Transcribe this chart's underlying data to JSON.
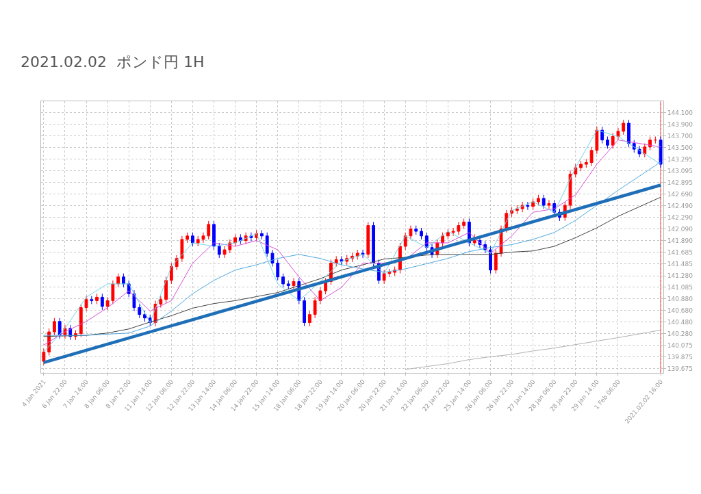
{
  "chart_data": {
    "type": "candlestick",
    "title": "2021.02.02  ポンド円 1H",
    "categories": [
      "4 Jan 2021",
      null,
      null,
      null,
      "6 Jan 22:00",
      null,
      null,
      null,
      "7 Jan 14:00",
      null,
      null,
      null,
      "8 Jan 06:00",
      null,
      null,
      null,
      "8 Jan 22:00",
      null,
      null,
      null,
      "11 Jan 14:00",
      null,
      null,
      null,
      "12 Jan 06:00",
      null,
      null,
      null,
      "12 Jan 22:00",
      null,
      null,
      null,
      "13 Jan 14:00",
      null,
      null,
      null,
      "14 Jan 06:00",
      null,
      null,
      null,
      "14 Jan 22:00",
      null,
      null,
      null,
      "15 Jan 14:00",
      null,
      null,
      null,
      "18 Jan 06:00",
      null,
      null,
      null,
      "18 Jan 22:00",
      null,
      null,
      null,
      "19 Jan 14:00",
      null,
      null,
      null,
      "20 Jan 06:00",
      null,
      null,
      null,
      "20 Jan 22:00",
      null,
      null,
      null,
      "21 Jan 14:00",
      null,
      null,
      null,
      "22 Jan 06:00",
      null,
      null,
      null,
      "22 Jan 22:00",
      null,
      null,
      null,
      "25 Jan 14:00",
      null,
      null,
      null,
      "26 Jan 06:00",
      null,
      null,
      null,
      "26 Jan 22:00",
      null,
      null,
      null,
      "27 Jan 14:00",
      null,
      null,
      null,
      "28 Jan 06:00",
      null,
      null,
      null,
      "28 Jan 22:00",
      null,
      null,
      null,
      "29 Jan 14:00",
      null,
      null,
      null,
      "1 Feb 06:00",
      null,
      null,
      null,
      null,
      null,
      null,
      null,
      "2021.02.02 16:00"
    ],
    "ohlc": [
      [
        139.8,
        140.02,
        139.74,
        139.96
      ],
      [
        139.96,
        140.37,
        139.9,
        140.31
      ],
      [
        140.31,
        140.55,
        140.25,
        140.49
      ],
      [
        140.49,
        140.55,
        140.19,
        140.25
      ],
      [
        140.25,
        140.43,
        140.19,
        140.37
      ],
      [
        140.37,
        140.43,
        140.17,
        140.23
      ],
      [
        140.23,
        140.34,
        140.17,
        140.28
      ],
      [
        140.28,
        140.79,
        140.22,
        140.73
      ],
      [
        140.73,
        140.93,
        140.67,
        140.87
      ],
      [
        140.87,
        140.93,
        140.79,
        140.85
      ],
      [
        140.85,
        140.97,
        140.79,
        140.91
      ],
      [
        140.91,
        140.97,
        140.69,
        140.75
      ],
      [
        140.75,
        140.91,
        140.69,
        140.85
      ],
      [
        140.85,
        141.2,
        140.79,
        141.14
      ],
      [
        141.14,
        141.32,
        141.08,
        141.26
      ],
      [
        141.26,
        141.32,
        141.08,
        141.14
      ],
      [
        141.14,
        141.2,
        140.91,
        140.97
      ],
      [
        140.97,
        141.03,
        140.67,
        140.73
      ],
      [
        140.73,
        140.79,
        140.55,
        140.61
      ],
      [
        140.61,
        140.67,
        140.49,
        140.55
      ],
      [
        140.55,
        140.61,
        140.41,
        140.47
      ],
      [
        140.47,
        140.85,
        140.41,
        140.79
      ],
      [
        140.79,
        140.93,
        140.73,
        140.87
      ],
      [
        140.87,
        141.26,
        140.81,
        141.2
      ],
      [
        141.2,
        141.5,
        141.14,
        141.44
      ],
      [
        141.44,
        141.64,
        141.38,
        141.58
      ],
      [
        141.58,
        141.97,
        141.52,
        141.91
      ],
      [
        141.91,
        142.03,
        141.85,
        141.97
      ],
      [
        141.97,
        142.03,
        141.79,
        141.85
      ],
      [
        141.85,
        141.97,
        141.79,
        141.91
      ],
      [
        141.91,
        142.03,
        141.85,
        141.97
      ],
      [
        141.97,
        142.23,
        141.91,
        142.17
      ],
      [
        142.17,
        142.23,
        141.73,
        141.79
      ],
      [
        141.79,
        141.85,
        141.59,
        141.65
      ],
      [
        141.65,
        141.79,
        141.59,
        141.73
      ],
      [
        141.73,
        141.91,
        141.67,
        141.85
      ],
      [
        141.85,
        142.0,
        141.79,
        141.94
      ],
      [
        141.94,
        142.0,
        141.83,
        141.89
      ],
      [
        141.89,
        142.03,
        141.83,
        141.97
      ],
      [
        141.97,
        142.03,
        141.88,
        141.94
      ],
      [
        141.94,
        142.07,
        141.88,
        142.01
      ],
      [
        142.01,
        142.07,
        141.91,
        141.97
      ],
      [
        141.97,
        142.03,
        141.61,
        141.67
      ],
      [
        141.67,
        141.73,
        141.44,
        141.5
      ],
      [
        141.5,
        141.56,
        141.2,
        141.26
      ],
      [
        141.26,
        141.32,
        141.08,
        141.14
      ],
      [
        141.14,
        141.2,
        141.05,
        141.11
      ],
      [
        141.11,
        141.24,
        141.05,
        141.18
      ],
      [
        141.18,
        141.24,
        140.79,
        140.85
      ],
      [
        140.85,
        140.91,
        140.41,
        140.47
      ],
      [
        140.47,
        140.67,
        140.41,
        140.61
      ],
      [
        140.61,
        140.91,
        140.55,
        140.85
      ],
      [
        140.85,
        141.08,
        140.79,
        141.02
      ],
      [
        141.02,
        141.24,
        140.96,
        141.18
      ],
      [
        141.18,
        141.56,
        141.12,
        141.5
      ],
      [
        141.5,
        141.62,
        141.44,
        141.56
      ],
      [
        141.56,
        141.62,
        141.47,
        141.53
      ],
      [
        141.53,
        141.64,
        141.47,
        141.58
      ],
      [
        141.58,
        141.68,
        141.52,
        141.62
      ],
      [
        141.62,
        141.73,
        141.56,
        141.67
      ],
      [
        141.67,
        141.73,
        141.59,
        141.65
      ],
      [
        141.65,
        142.21,
        141.59,
        142.15
      ],
      [
        142.15,
        142.21,
        141.44,
        141.5
      ],
      [
        141.5,
        141.56,
        141.14,
        141.2
      ],
      [
        141.2,
        141.38,
        141.14,
        141.32
      ],
      [
        141.32,
        141.4,
        141.26,
        141.34
      ],
      [
        141.34,
        141.44,
        141.28,
        141.38
      ],
      [
        141.38,
        141.85,
        141.32,
        141.79
      ],
      [
        141.79,
        142.03,
        141.73,
        141.97
      ],
      [
        141.97,
        142.15,
        141.91,
        142.09
      ],
      [
        142.09,
        142.15,
        141.99,
        142.05
      ],
      [
        142.05,
        142.11,
        141.91,
        141.97
      ],
      [
        141.97,
        142.03,
        141.71,
        141.77
      ],
      [
        141.77,
        141.83,
        141.59,
        141.65
      ],
      [
        141.65,
        141.91,
        141.59,
        141.85
      ],
      [
        141.85,
        142.03,
        141.79,
        141.97
      ],
      [
        141.97,
        142.09,
        141.91,
        142.03
      ],
      [
        142.03,
        142.11,
        141.97,
        142.05
      ],
      [
        142.05,
        142.21,
        141.99,
        142.15
      ],
      [
        142.15,
        142.27,
        142.09,
        142.21
      ],
      [
        142.21,
        142.27,
        141.79,
        141.85
      ],
      [
        141.85,
        142.0,
        141.79,
        141.89
      ],
      [
        141.89,
        141.95,
        141.76,
        141.82
      ],
      [
        141.82,
        141.88,
        141.67,
        141.73
      ],
      [
        141.73,
        141.79,
        141.32,
        141.38
      ],
      [
        141.38,
        141.73,
        141.32,
        141.67
      ],
      [
        141.67,
        142.15,
        141.61,
        142.09
      ],
      [
        142.09,
        142.42,
        142.03,
        142.36
      ],
      [
        142.36,
        142.47,
        142.3,
        142.41
      ],
      [
        142.41,
        142.5,
        142.35,
        142.44
      ],
      [
        142.44,
        142.56,
        142.38,
        142.5
      ],
      [
        142.5,
        142.56,
        142.42,
        142.48
      ],
      [
        142.48,
        142.62,
        142.42,
        142.56
      ],
      [
        142.56,
        142.68,
        142.5,
        142.62
      ],
      [
        142.62,
        142.68,
        142.44,
        142.5
      ],
      [
        142.5,
        142.59,
        142.44,
        142.53
      ],
      [
        142.53,
        142.59,
        142.32,
        142.38
      ],
      [
        142.38,
        142.44,
        142.23,
        142.29
      ],
      [
        142.29,
        142.56,
        142.23,
        142.5
      ],
      [
        142.5,
        143.1,
        142.44,
        143.04
      ],
      [
        143.04,
        143.21,
        142.98,
        143.15
      ],
      [
        143.15,
        143.27,
        143.09,
        143.21
      ],
      [
        143.21,
        143.3,
        143.15,
        143.24
      ],
      [
        143.24,
        143.51,
        143.18,
        143.45
      ],
      [
        143.45,
        143.86,
        143.39,
        143.8
      ],
      [
        143.8,
        143.86,
        143.57,
        143.63
      ],
      [
        143.63,
        143.69,
        143.48,
        143.54
      ],
      [
        143.54,
        143.75,
        143.48,
        143.69
      ],
      [
        143.69,
        143.84,
        143.63,
        143.78
      ],
      [
        143.78,
        143.98,
        143.72,
        143.92
      ],
      [
        143.92,
        143.98,
        143.51,
        143.57
      ],
      [
        143.57,
        143.63,
        143.41,
        143.47
      ],
      [
        143.47,
        143.53,
        143.33,
        143.39
      ],
      [
        143.39,
        143.57,
        143.33,
        143.51
      ],
      [
        143.51,
        143.69,
        143.45,
        143.63
      ],
      [
        143.63,
        143.69,
        143.57,
        143.63
      ],
      [
        143.63,
        143.69,
        143.15,
        143.21
      ]
    ],
    "series": [
      {
        "type": "line",
        "color": "#b0b0b0",
        "x": [
          "21 Jan 14:00",
          "22 Jan 06:00",
          "22 Jan 22:00",
          "25 Jan 14:00",
          "26 Jan 06:00",
          "26 Jan 22:00",
          "27 Jan 14:00",
          "28 Jan 06:00",
          "28 Jan 22:00",
          "29 Jan 14:00",
          "1 Feb 06:00",
          "2021.02.02 16:00"
        ],
        "values": [
          139.66,
          139.71,
          139.76,
          139.83,
          139.88,
          139.92,
          139.98,
          140.03,
          140.09,
          140.15,
          140.21,
          140.34
        ]
      },
      {
        "type": "line",
        "color": "#404040",
        "x": [
          "4 Jan 2021",
          "6 Jan 22:00",
          "7 Jan 14:00",
          "8 Jan 06:00",
          "8 Jan 22:00",
          "11 Jan 14:00",
          "12 Jan 06:00",
          "12 Jan 22:00",
          "13 Jan 14:00",
          "14 Jan 06:00",
          "14 Jan 22:00",
          "15 Jan 14:00",
          "18 Jan 06:00",
          "18 Jan 22:00",
          "19 Jan 14:00",
          "20 Jan 06:00",
          "20 Jan 22:00",
          "21 Jan 14:00",
          "22 Jan 06:00",
          "22 Jan 22:00",
          "25 Jan 14:00",
          "26 Jan 06:00",
          "26 Jan 22:00",
          "27 Jan 14:00",
          "28 Jan 06:00",
          "28 Jan 22:00",
          "29 Jan 14:00",
          "1 Feb 06:00",
          "2021.02.02 16:00"
        ],
        "values": [
          140.23,
          140.24,
          140.25,
          140.29,
          140.36,
          140.48,
          140.59,
          140.72,
          140.8,
          140.85,
          140.92,
          140.99,
          141.11,
          141.23,
          141.38,
          141.47,
          141.57,
          141.6,
          141.64,
          141.65,
          141.65,
          141.65,
          141.69,
          141.71,
          141.79,
          141.94,
          142.11,
          142.31,
          142.64
        ]
      },
      {
        "type": "line",
        "color": "#4fa8e0",
        "x": [
          "4 Jan 2021",
          "6 Jan 22:00",
          "7 Jan 14:00",
          "8 Jan 06:00",
          "8 Jan 22:00",
          "11 Jan 14:00",
          "12 Jan 06:00",
          "12 Jan 22:00",
          "13 Jan 14:00",
          "14 Jan 06:00",
          "14 Jan 22:00",
          "15 Jan 14:00",
          "18 Jan 06:00",
          "18 Jan 22:00",
          "19 Jan 14:00",
          "20 Jan 06:00",
          "20 Jan 22:00",
          "21 Jan 14:00",
          "22 Jan 06:00",
          "22 Jan 22:00",
          "25 Jan 14:00",
          "26 Jan 06:00",
          "26 Jan 22:00",
          "27 Jan 14:00",
          "28 Jan 06:00",
          "28 Jan 22:00",
          "29 Jan 14:00",
          "1 Feb 06:00",
          "2021.02.02 16:00"
        ],
        "values": [
          140.25,
          140.25,
          140.25,
          140.27,
          140.29,
          140.41,
          140.67,
          140.97,
          141.2,
          141.38,
          141.47,
          141.58,
          141.65,
          141.58,
          141.47,
          141.4,
          141.34,
          141.4,
          141.49,
          141.58,
          141.7,
          141.77,
          141.82,
          141.91,
          142.03,
          142.24,
          142.5,
          142.76,
          143.25
        ]
      },
      {
        "type": "line",
        "color": "#d94fd9",
        "x": [
          "4 Jan 2021",
          "6 Jan 22:00",
          "7 Jan 14:00",
          "8 Jan 06:00",
          "8 Jan 22:00",
          "11 Jan 14:00",
          "12 Jan 06:00",
          "12 Jan 22:00",
          "13 Jan 14:00",
          "14 Jan 06:00",
          "14 Jan 22:00",
          "15 Jan 14:00",
          "18 Jan 06:00",
          "18 Jan 22:00",
          "19 Jan 14:00",
          "20 Jan 06:00",
          "20 Jan 22:00",
          "21 Jan 14:00",
          "22 Jan 06:00",
          "22 Jan 22:00",
          "25 Jan 14:00",
          "26 Jan 06:00",
          "26 Jan 22:00",
          "27 Jan 14:00",
          "28 Jan 06:00",
          "28 Jan 22:00",
          "29 Jan 14:00",
          "1 Feb 06:00",
          "2021.02.02 16:00"
        ],
        "values": [
          140.08,
          140.31,
          140.49,
          140.73,
          141.02,
          140.67,
          140.85,
          141.5,
          141.85,
          141.79,
          141.89,
          141.73,
          141.26,
          140.85,
          141.08,
          141.5,
          141.5,
          141.56,
          141.85,
          141.85,
          142.03,
          141.67,
          141.97,
          142.38,
          142.44,
          142.68,
          143.21,
          143.63,
          143.51
        ]
      },
      {
        "type": "line",
        "color": "#6fd6e8",
        "x": [
          "4 Jan 2021",
          "6 Jan 22:00",
          "7 Jan 14:00",
          "8 Jan 06:00",
          "8 Jan 22:00",
          "11 Jan 14:00",
          "12 Jan 06:00",
          "12 Jan 22:00",
          "13 Jan 14:00",
          "14 Jan 06:00",
          "14 Jan 22:00",
          "15 Jan 14:00",
          "18 Jan 06:00",
          "18 Jan 22:00",
          "19 Jan 14:00",
          "20 Jan 06:00",
          "20 Jan 22:00",
          "21 Jan 14:00",
          "22 Jan 06:00",
          "22 Jan 22:00",
          "25 Jan 14:00",
          "26 Jan 06:00",
          "26 Jan 22:00",
          "27 Jan 14:00",
          "28 Jan 06:00",
          "28 Jan 22:00",
          "29 Jan 14:00",
          "1 Feb 06:00",
          "2021.02.02 16:00"
        ],
        "values": [
          139.96,
          140.37,
          140.91,
          141.14,
          141.14,
          140.47,
          141.44,
          141.85,
          141.79,
          141.85,
          142.01,
          141.14,
          140.85,
          141.18,
          141.53,
          141.65,
          141.32,
          141.97,
          141.77,
          142.05,
          141.85,
          141.67,
          142.41,
          142.56,
          142.38,
          143.15,
          143.8,
          143.69,
          143.21
        ]
      },
      {
        "type": "line",
        "color": "#1f6fb8",
        "x": [
          "4 Jan 2021",
          "2021.02.02 16:00"
        ],
        "values": [
          139.78,
          142.85
        ]
      }
    ],
    "ylim": [
      139.6,
      144.3
    ],
    "yticks": [
      {
        "value": 144.1,
        "label": "144.100"
      },
      {
        "value": 143.9,
        "label": "143.900"
      },
      {
        "value": 143.7,
        "label": "143.700"
      },
      {
        "value": 143.5,
        "label": "143.500"
      },
      {
        "value": 143.295,
        "label": "143.295"
      },
      {
        "value": 143.095,
        "label": "143.095"
      },
      {
        "value": 142.895,
        "label": "142.895"
      },
      {
        "value": 142.69,
        "label": "142.690"
      },
      {
        "value": 142.49,
        "label": "142.490"
      },
      {
        "value": 142.29,
        "label": "142.290"
      },
      {
        "value": 142.09,
        "label": "142.090"
      },
      {
        "value": 141.89,
        "label": "141.890"
      },
      141.685,
      141.485,
      {
        "value": 141.28,
        "label": "141.280"
      },
      141.085,
      {
        "value": 140.88,
        "label": "140.880"
      },
      {
        "value": 140.68,
        "label": "140.680"
      },
      {
        "value": 140.48,
        "label": "140.480"
      },
      {
        "value": 140.28,
        "label": "140.280"
      },
      140.075,
      139.875,
      139.675
    ],
    "ref_lines": [
      {
        "axis": "x",
        "value": "2021.02.02 16:00",
        "color": "#ff0000"
      }
    ],
    "grid": true
  }
}
